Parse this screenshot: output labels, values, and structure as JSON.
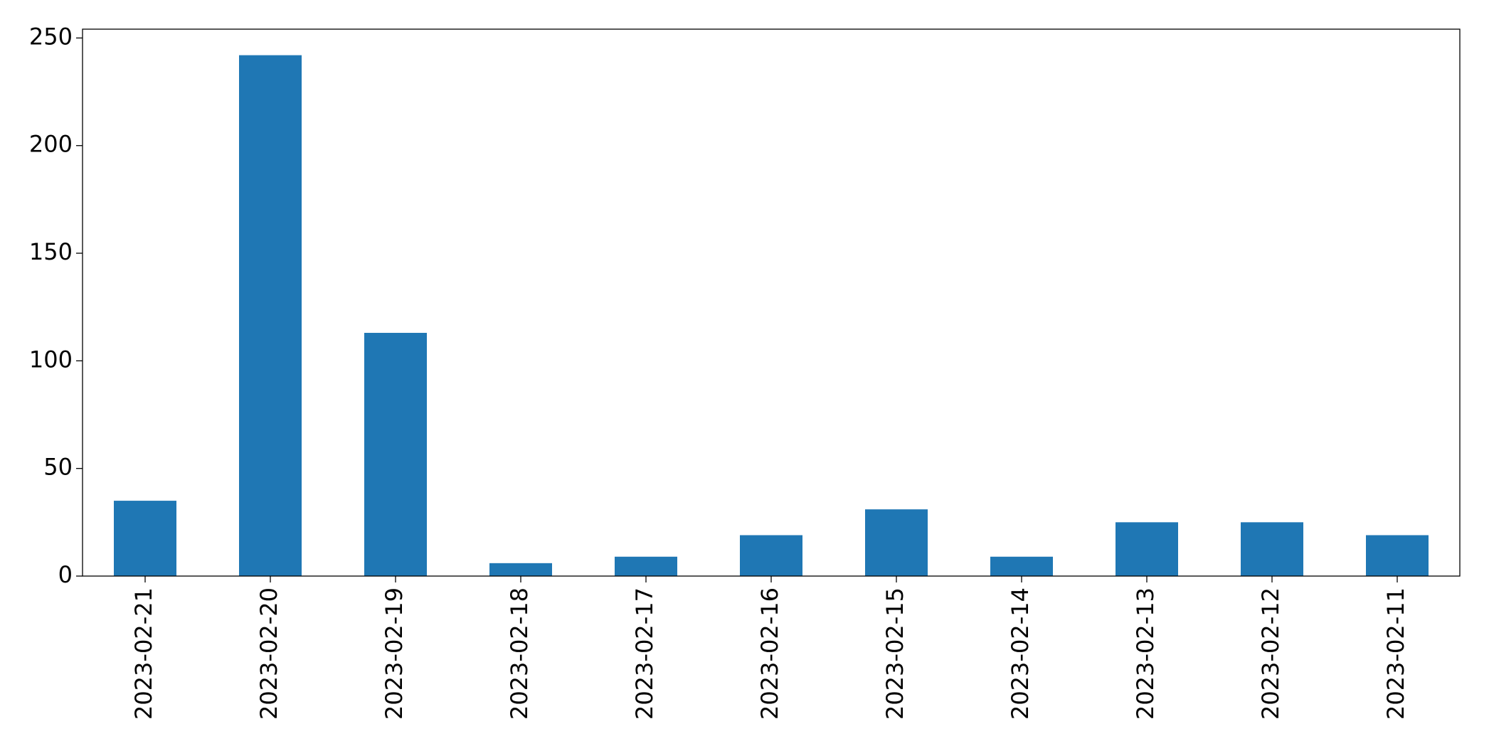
{
  "chart_data": {
    "type": "bar",
    "categories": [
      "2023-02-21",
      "2023-02-20",
      "2023-02-19",
      "2023-02-18",
      "2023-02-17",
      "2023-02-16",
      "2023-02-15",
      "2023-02-14",
      "2023-02-13",
      "2023-02-12",
      "2023-02-11"
    ],
    "values": [
      35,
      242,
      113,
      6,
      9,
      19,
      31,
      9,
      25,
      25,
      19
    ],
    "color": "#1f77b4",
    "ylim": [
      0,
      254.1
    ],
    "yticks": [
      0,
      50,
      100,
      150,
      200,
      250
    ],
    "grid": false
  }
}
